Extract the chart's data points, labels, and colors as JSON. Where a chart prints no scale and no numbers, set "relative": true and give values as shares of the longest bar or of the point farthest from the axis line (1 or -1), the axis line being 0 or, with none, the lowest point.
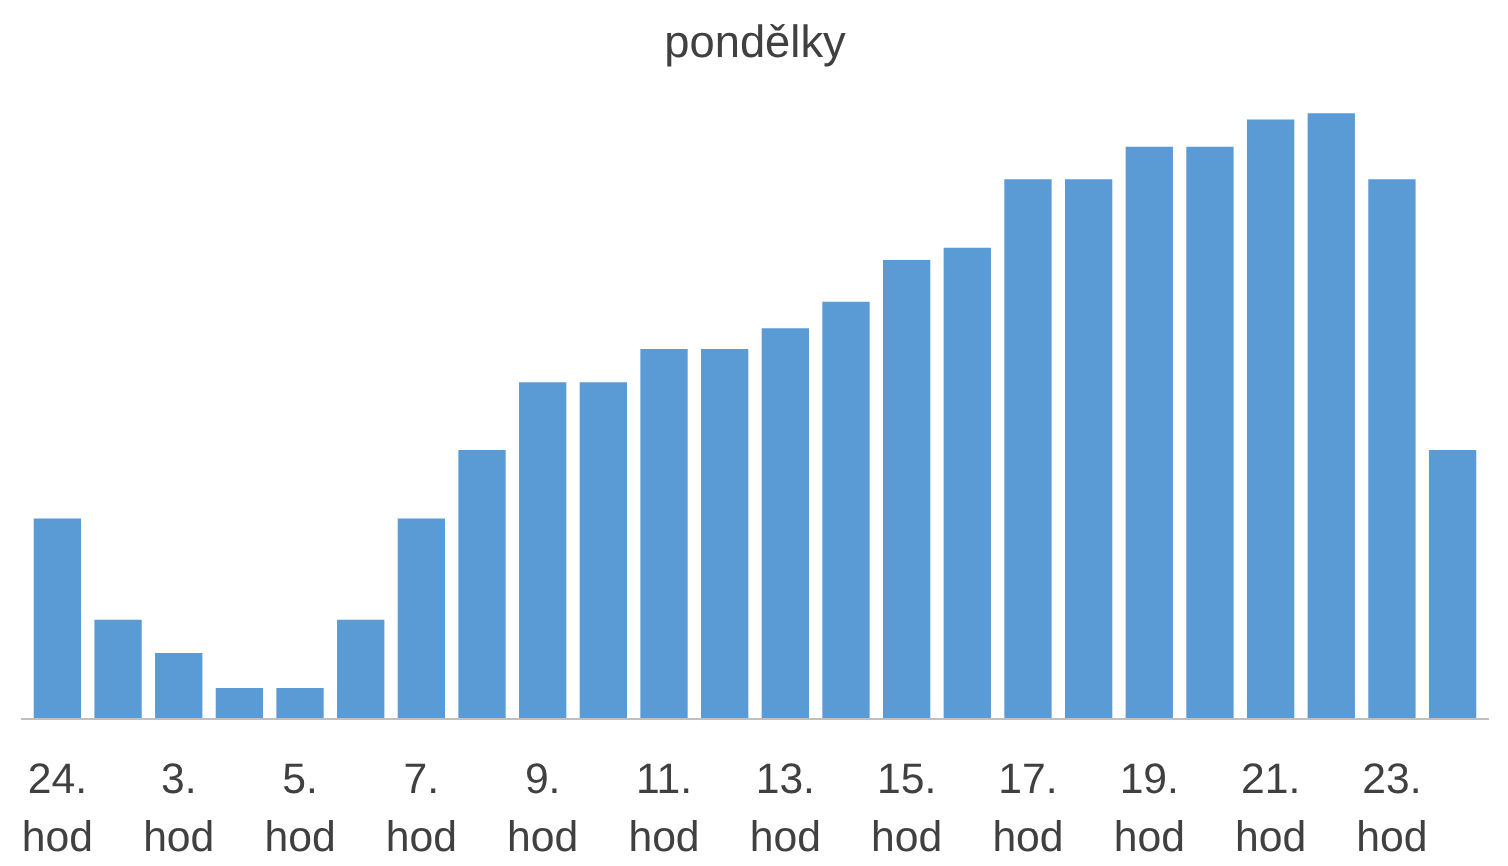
{
  "chart_data": {
    "type": "bar",
    "title": "pondělky",
    "relative": true,
    "color": "#5b9bd5",
    "grid": false,
    "categories": [
      "24.\nhod",
      null,
      "3.\nhod",
      null,
      "5.\nhod",
      null,
      "7.\nhod",
      null,
      "9.\nhod",
      null,
      "11.\nhod",
      null,
      "13.\nhod",
      null,
      "15.\nhod",
      null,
      "17.\nhod",
      null,
      "19.\nhod",
      null,
      "21.\nhod",
      null,
      "23.\nhod",
      null
    ],
    "values": [
      0.331,
      0.164,
      0.109,
      0.051,
      0.051,
      0.164,
      0.331,
      0.444,
      0.556,
      0.556,
      0.611,
      0.611,
      0.645,
      0.689,
      0.758,
      0.778,
      0.891,
      0.891,
      0.945,
      0.945,
      0.99,
      1,
      0.891,
      0.444
    ]
  }
}
